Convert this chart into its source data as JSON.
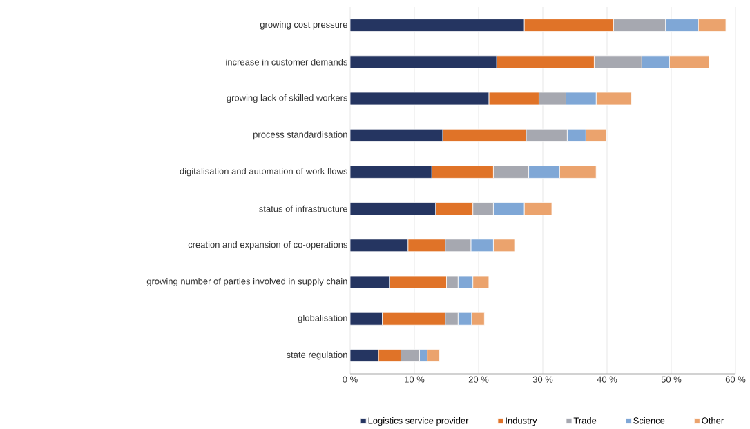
{
  "chart_data": {
    "type": "bar",
    "orientation": "horizontal",
    "stacked": true,
    "categories": [
      "growing cost pressure",
      "increase in customer demands",
      "growing lack of skilled workers",
      "process standardisation",
      "digitalisation and automation of work flows",
      "status of infrastructure",
      "creation and expansion of co-operations",
      "growing number of parties involved in supply chain",
      "globalisation",
      "state regulation"
    ],
    "series": [
      {
        "name": "Logistics service provider",
        "color": "#253561",
        "values": [
          27.1,
          22.8,
          21.6,
          14.4,
          12.7,
          13.3,
          9.0,
          6.1,
          5.0,
          4.4
        ]
      },
      {
        "name": "Industry",
        "color": "#e07328",
        "values": [
          13.9,
          15.2,
          7.8,
          13.0,
          9.6,
          5.8,
          5.8,
          8.9,
          9.8,
          3.5
        ]
      },
      {
        "name": "Trade",
        "color": "#a6a8b0",
        "values": [
          8.1,
          7.4,
          4.2,
          6.4,
          5.5,
          3.2,
          4.0,
          1.8,
          2.0,
          2.9
        ]
      },
      {
        "name": "Science",
        "color": "#7fa7d6",
        "values": [
          5.1,
          4.3,
          4.7,
          2.9,
          4.8,
          4.8,
          3.5,
          2.3,
          2.1,
          1.2
        ]
      },
      {
        "name": "Other",
        "color": "#eba36d",
        "values": [
          4.3,
          6.2,
          5.5,
          3.2,
          5.7,
          4.3,
          3.3,
          2.5,
          2.0,
          1.9
        ]
      }
    ],
    "xlim": [
      0,
      60
    ],
    "xticks": [
      {
        "value": 0,
        "label": "0 %"
      },
      {
        "value": 10,
        "label": "10 %"
      },
      {
        "value": 20,
        "label": "20 %"
      },
      {
        "value": 30,
        "label": "30 %"
      },
      {
        "value": 40,
        "label": "40 %"
      },
      {
        "value": 50,
        "label": "50 %"
      },
      {
        "value": 60,
        "label": "60 %"
      }
    ],
    "grid": "x",
    "legend": "bottom"
  }
}
